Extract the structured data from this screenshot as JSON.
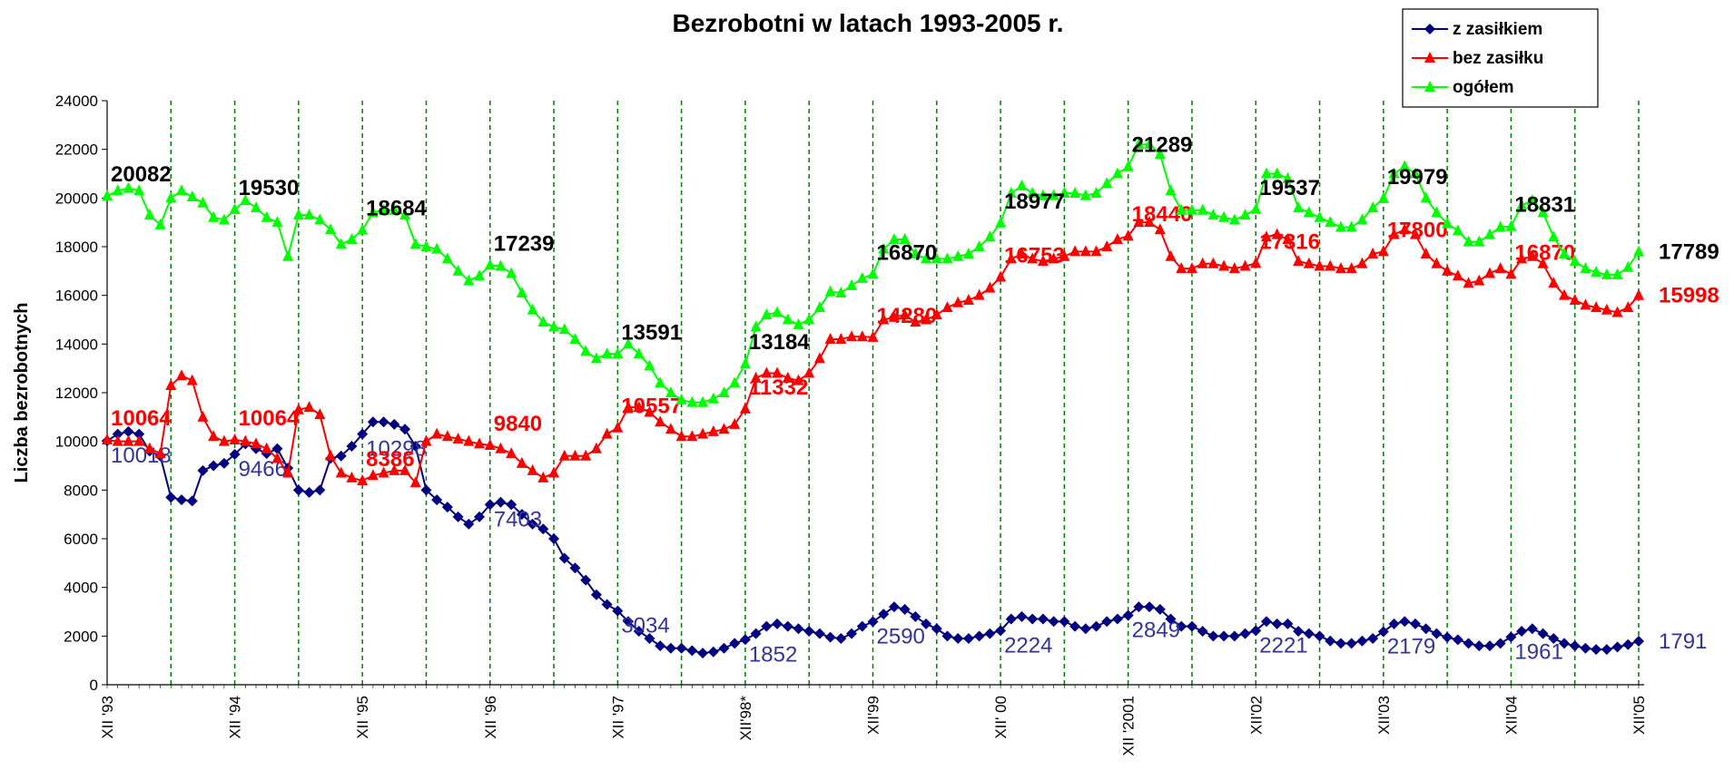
{
  "chart_data": {
    "type": "line",
    "title": "Bezrobotni w latach 1993-2005 r.",
    "y_label": "Liczba bezrobotnych",
    "legend": "upper right",
    "categories": [
      "XII '93",
      null,
      null,
      null,
      null,
      null,
      null,
      null,
      null,
      null,
      null,
      null,
      "XII '94",
      null,
      null,
      null,
      null,
      null,
      null,
      null,
      null,
      null,
      null,
      null,
      "XII '95",
      null,
      null,
      null,
      null,
      null,
      null,
      null,
      null,
      null,
      null,
      null,
      "XII '96",
      null,
      null,
      null,
      null,
      null,
      null,
      null,
      null,
      null,
      null,
      null,
      "XII '97",
      null,
      null,
      null,
      null,
      null,
      null,
      null,
      null,
      null,
      null,
      null,
      "XII'98*",
      null,
      null,
      null,
      null,
      null,
      null,
      null,
      null,
      null,
      null,
      null,
      "XII'99",
      null,
      null,
      null,
      null,
      null,
      null,
      null,
      null,
      null,
      null,
      null,
      "XII' 00",
      null,
      null,
      null,
      null,
      null,
      null,
      null,
      null,
      null,
      null,
      null,
      "XII '2001",
      null,
      null,
      null,
      null,
      null,
      null,
      null,
      null,
      null,
      null,
      null,
      "XII'02",
      null,
      null,
      null,
      null,
      null,
      null,
      null,
      null,
      null,
      null,
      null,
      "XII'03",
      null,
      null,
      null,
      null,
      null,
      null,
      null,
      null,
      null,
      null,
      null,
      "XII'04",
      null,
      null,
      null,
      null,
      null,
      null,
      null,
      null,
      null,
      null,
      null,
      "XII'05"
    ],
    "ylim": [
      0,
      24000
    ],
    "yticks": [
      0,
      2000,
      4000,
      6000,
      8000,
      10000,
      12000,
      14000,
      16000,
      18000,
      20000,
      22000,
      24000
    ],
    "series": [
      {
        "name": "z zasiłkiem",
        "color": "#000080",
        "marker": "diamond",
        "values": [
          10018,
          10300,
          10400,
          10300,
          9600,
          9400,
          7700,
          7600,
          7550,
          8800,
          9000,
          9100,
          9466,
          9900,
          9700,
          9500,
          9700,
          8900,
          8000,
          7900,
          8000,
          9300,
          9400,
          9800,
          10298,
          10800,
          10800,
          10700,
          10500,
          9800,
          8000,
          7600,
          7300,
          6900,
          6600,
          6900,
          7403,
          7500,
          7400,
          7000,
          6600,
          6400,
          6000,
          5200,
          4800,
          4300,
          3700,
          3300,
          3034,
          2600,
          2200,
          1900,
          1600,
          1500,
          1500,
          1400,
          1300,
          1350,
          1500,
          1700,
          1852,
          2100,
          2400,
          2500,
          2400,
          2300,
          2200,
          2100,
          1950,
          1900,
          2100,
          2400,
          2590,
          2900,
          3200,
          3100,
          2800,
          2500,
          2300,
          2000,
          1900,
          1900,
          2000,
          2100,
          2224,
          2700,
          2800,
          2700,
          2700,
          2600,
          2600,
          2400,
          2300,
          2400,
          2600,
          2700,
          2849,
          3200,
          3200,
          3100,
          2700,
          2400,
          2400,
          2200,
          2000,
          2000,
          2000,
          2100,
          2221,
          2600,
          2500,
          2500,
          2200,
          2100,
          2000,
          1800,
          1700,
          1700,
          1800,
          1900,
          2179,
          2500,
          2600,
          2500,
          2300,
          2100,
          1950,
          1850,
          1700,
          1600,
          1600,
          1700,
          1961,
          2200,
          2300,
          2100,
          1900,
          1700,
          1600,
          1500,
          1450,
          1450,
          1550,
          1650,
          1791
        ]
      },
      {
        "name": "bez zasiłku",
        "color": "#ff0000",
        "marker": "triangle",
        "values": [
          10064,
          10000,
          10000,
          10000,
          9700,
          9500,
          12300,
          12700,
          12500,
          11000,
          10200,
          10000,
          10064,
          10000,
          9900,
          9700,
          9300,
          8700,
          11300,
          11400,
          11100,
          9400,
          8700,
          8500,
          8386,
          8600,
          8700,
          8800,
          8800,
          8300,
          10000,
          10300,
          10200,
          10100,
          10000,
          9900,
          9840,
          9700,
          9500,
          9100,
          8800,
          8500,
          8700,
          9400,
          9400,
          9400,
          9700,
          10300,
          10557,
          11400,
          11400,
          11200,
          10800,
          10500,
          10200,
          10200,
          10300,
          10400,
          10500,
          10700,
          11332,
          12600,
          12800,
          12800,
          12600,
          12500,
          12800,
          13400,
          14200,
          14200,
          14300,
          14300,
          14280,
          15000,
          15100,
          15200,
          14900,
          15000,
          15200,
          15500,
          15700,
          15800,
          16000,
          16300,
          16753,
          17500,
          17700,
          17500,
          17400,
          17500,
          17600,
          17800,
          17800,
          17800,
          18000,
          18300,
          18440,
          19000,
          19000,
          18700,
          17600,
          17100,
          17100,
          17300,
          17300,
          17200,
          17100,
          17200,
          17316,
          18400,
          18500,
          18300,
          17400,
          17300,
          17200,
          17200,
          17100,
          17100,
          17300,
          17700,
          17800,
          18500,
          18700,
          18500,
          17700,
          17300,
          17000,
          16800,
          16500,
          16600,
          16900,
          17100,
          16870,
          17500,
          17600,
          17300,
          16500,
          16000,
          15800,
          15600,
          15500,
          15400,
          15300,
          15500,
          15998
        ]
      },
      {
        "name": "ogółem",
        "color": "#00ff00",
        "marker": "triangle",
        "values": [
          20082,
          20300,
          20400,
          20300,
          19300,
          18900,
          20000,
          20300,
          20050,
          19800,
          19200,
          19100,
          19530,
          19900,
          19600,
          19200,
          19000,
          17600,
          19300,
          19300,
          19100,
          18700,
          18100,
          18300,
          18684,
          19400,
          19500,
          19500,
          19300,
          18100,
          18000,
          17900,
          17500,
          17000,
          16600,
          16800,
          17239,
          17200,
          16900,
          16100,
          15400,
          14900,
          14700,
          14600,
          14200,
          13700,
          13400,
          13600,
          13591,
          14000,
          13600,
          13100,
          12400,
          12000,
          11700,
          11600,
          11600,
          11750,
          12000,
          12400,
          13184,
          14700,
          15200,
          15300,
          15000,
          14800,
          15000,
          15500,
          16150,
          16100,
          16400,
          16700,
          16870,
          17900,
          18300,
          18300,
          17700,
          17500,
          17500,
          17500,
          17600,
          17700,
          18000,
          18400,
          18977,
          20200,
          20500,
          20200,
          20100,
          20100,
          20200,
          20200,
          20100,
          20200,
          20600,
          21000,
          21289,
          22200,
          22200,
          21800,
          20300,
          19500,
          19500,
          19500,
          19300,
          19200,
          19100,
          19300,
          19537,
          21000,
          21000,
          20800,
          19600,
          19400,
          19200,
          19000,
          18800,
          18800,
          19100,
          19600,
          19979,
          21000,
          21300,
          21000,
          20000,
          19400,
          18950,
          18650,
          18200,
          18200,
          18500,
          18800,
          18831,
          19700,
          19900,
          19400,
          18400,
          17700,
          17400,
          17100,
          16950,
          16850,
          16850,
          17150,
          17789
        ]
      }
    ]
  }
}
